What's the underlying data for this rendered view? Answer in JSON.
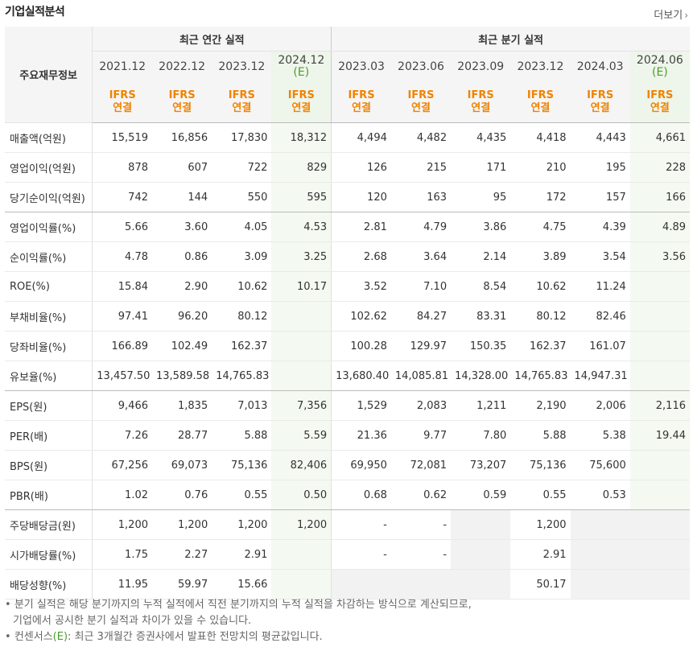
{
  "title": "기업실적분석",
  "more_label": "더보기",
  "header": {
    "row_head": "주요재무정보",
    "annual_group": "최근 연간 실적",
    "quarter_group": "최근 분기 실적",
    "annual_periods": [
      {
        "label": "2021.12",
        "est": ""
      },
      {
        "label": "2022.12",
        "est": ""
      },
      {
        "label": "2023.12",
        "est": ""
      },
      {
        "label": "2024.12",
        "est": "(E)"
      }
    ],
    "quarter_periods": [
      {
        "label": "2023.03",
        "est": ""
      },
      {
        "label": "2023.06",
        "est": ""
      },
      {
        "label": "2023.09",
        "est": ""
      },
      {
        "label": "2023.12",
        "est": ""
      },
      {
        "label": "2024.03",
        "est": ""
      },
      {
        "label": "2024.06",
        "est": "(E)"
      }
    ],
    "ifrs_top": "IFRS",
    "ifrs_bottom": "연결"
  },
  "rows": [
    {
      "label": "매출액(억원)",
      "values": [
        "15,519",
        "16,856",
        "17,830",
        "18,312",
        "4,494",
        "4,482",
        "4,435",
        "4,418",
        "4,443",
        "4,661"
      ]
    },
    {
      "label": "영업이익(억원)",
      "values": [
        "878",
        "607",
        "722",
        "829",
        "126",
        "215",
        "171",
        "210",
        "195",
        "228"
      ]
    },
    {
      "label": "당기순이익(억원)",
      "values": [
        "742",
        "144",
        "550",
        "595",
        "120",
        "163",
        "95",
        "172",
        "157",
        "166"
      ]
    },
    {
      "label": "영업이익률(%)",
      "values": [
        "5.66",
        "3.60",
        "4.05",
        "4.53",
        "2.81",
        "4.79",
        "3.86",
        "4.75",
        "4.39",
        "4.89"
      ]
    },
    {
      "label": "순이익률(%)",
      "values": [
        "4.78",
        "0.86",
        "3.09",
        "3.25",
        "2.68",
        "3.64",
        "2.14",
        "3.89",
        "3.54",
        "3.56"
      ]
    },
    {
      "label": "ROE(%)",
      "values": [
        "15.84",
        "2.90",
        "10.62",
        "10.17",
        "3.52",
        "7.10",
        "8.54",
        "10.62",
        "11.24",
        ""
      ]
    },
    {
      "label": "부채비율(%)",
      "values": [
        "97.41",
        "96.20",
        "80.12",
        "",
        "102.62",
        "84.27",
        "83.31",
        "80.12",
        "82.46",
        ""
      ]
    },
    {
      "label": "당좌비율(%)",
      "values": [
        "166.89",
        "102.49",
        "162.37",
        "",
        "100.28",
        "129.97",
        "150.35",
        "162.37",
        "161.07",
        ""
      ]
    },
    {
      "label": "유보율(%)",
      "values": [
        "13,457.50",
        "13,589.58",
        "14,765.83",
        "",
        "13,680.40",
        "14,085.81",
        "14,328.00",
        "14,765.83",
        "14,947.31",
        ""
      ]
    },
    {
      "label": "EPS(원)",
      "values": [
        "9,466",
        "1,835",
        "7,013",
        "7,356",
        "1,529",
        "2,083",
        "1,211",
        "2,190",
        "2,006",
        "2,116"
      ]
    },
    {
      "label": "PER(배)",
      "values": [
        "7.26",
        "28.77",
        "5.88",
        "5.59",
        "21.36",
        "9.77",
        "7.80",
        "5.88",
        "5.38",
        "19.44"
      ]
    },
    {
      "label": "BPS(원)",
      "values": [
        "67,256",
        "69,073",
        "75,136",
        "82,406",
        "69,950",
        "72,081",
        "73,207",
        "75,136",
        "75,600",
        ""
      ]
    },
    {
      "label": "PBR(배)",
      "values": [
        "1.02",
        "0.76",
        "0.55",
        "0.50",
        "0.68",
        "0.62",
        "0.59",
        "0.55",
        "0.53",
        ""
      ]
    },
    {
      "label": "주당배당금(원)",
      "values": [
        "1,200",
        "1,200",
        "1,200",
        "1,200",
        "-",
        "-",
        "",
        "1,200",
        "",
        ""
      ]
    },
    {
      "label": "시가배당률(%)",
      "values": [
        "1.75",
        "2.27",
        "2.91",
        "",
        "-",
        "-",
        "",
        "2.91",
        "",
        ""
      ]
    },
    {
      "label": "배당성향(%)",
      "values": [
        "11.95",
        "59.97",
        "15.66",
        "",
        "",
        "",
        "",
        "50.17",
        "",
        ""
      ]
    }
  ],
  "notes": {
    "line1": "분기 실적은 해당 분기까지의 누적 실적에서 직전 분기까지의 누적 실적을 차감하는 방식으로 계산되므로,",
    "line2": "기업에서 공시한 분기 실적과 차이가 있을 수 있습니다.",
    "line3_prefix": "컨센서스",
    "line3_e": "(E)",
    "line3_suffix": ": 최근 3개월간 증권사에서 발표한 전망치의 평균값입니다."
  }
}
